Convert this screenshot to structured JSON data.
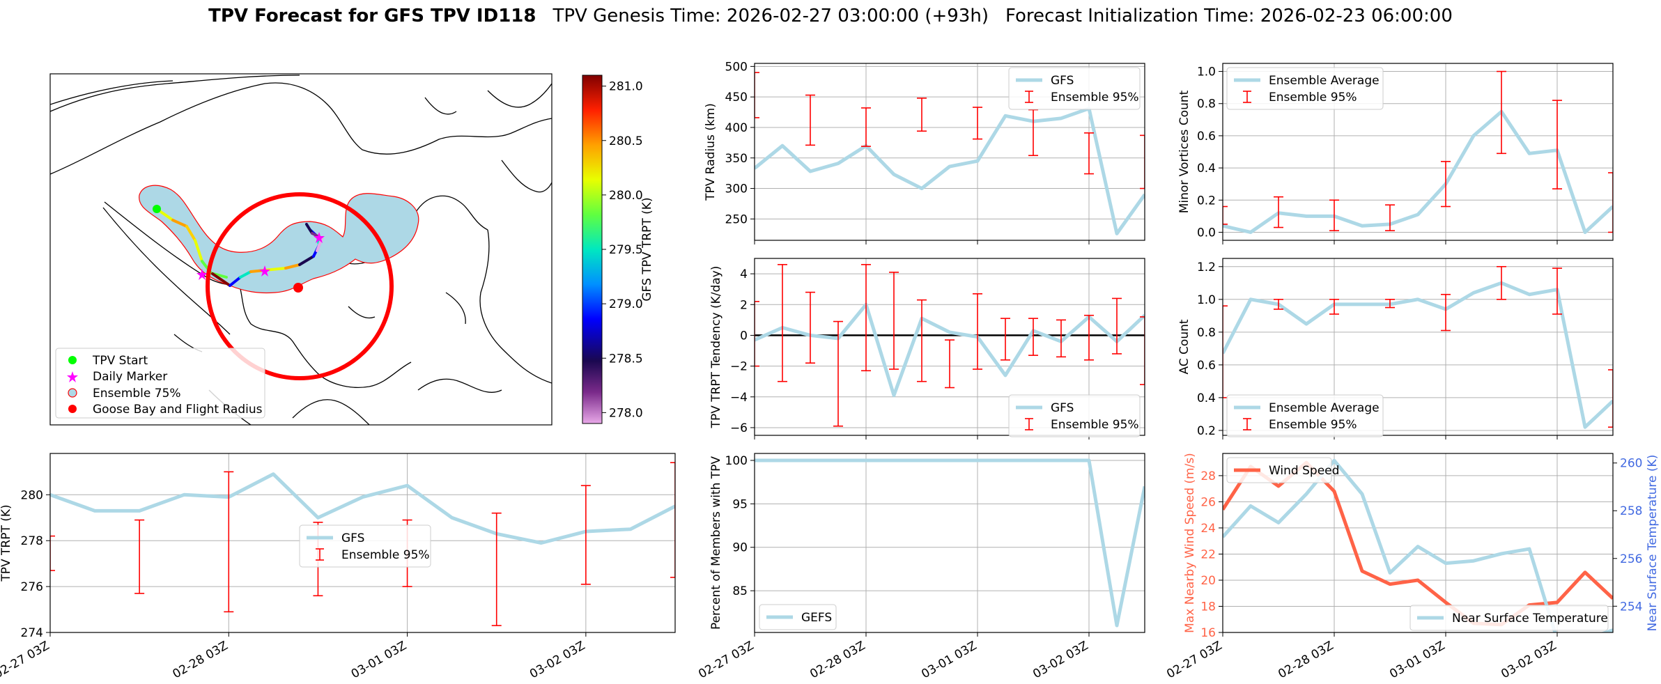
{
  "title": {
    "bold": "TPV Forecast for GFS TPV ID118",
    "genesis": "TPV Genesis Time: 2026-02-27 03:00:00 (+93h)",
    "init": "Forecast Initialization Time: 2026-02-23 06:00:00"
  },
  "colors": {
    "gfs": "#add8e6",
    "ens": "#ff0000",
    "wind": "#ff6347",
    "temp_axis": "#4169e1"
  },
  "map": {
    "legend": [
      "TPV Start",
      "Daily Marker",
      "Ensemble 75%",
      "Goose Bay and Flight Radius"
    ],
    "legend_colors": [
      "#00ff00",
      "#ff00ff",
      "#add8e6",
      "#ff0000"
    ],
    "colorbar": {
      "label": "GFS TPV TRPT (K)",
      "min": 277.9,
      "max": 281.1,
      "ticks": [
        "278.0",
        "278.5",
        "279.0",
        "279.5",
        "280.0",
        "280.5",
        "281.0"
      ]
    },
    "track_labels": [
      "TPV Start",
      "Daily Marker",
      "Goose Bay and Flight Radius"
    ]
  },
  "x_tick_labels": [
    "02-27 03Z",
    "02-28 03Z",
    "03-01 03Z",
    "03-02 03Z"
  ],
  "chart_data": [
    {
      "id": "radius",
      "type": "line",
      "ylabel": "TPV Radius (km)",
      "ylim": [
        215,
        505
      ],
      "yticks": [
        "250",
        "300",
        "350",
        "400",
        "450",
        "500"
      ],
      "ytick_values": [
        250,
        300,
        350,
        400,
        450,
        500
      ],
      "legend": [
        "GFS",
        "Ensemble 95%"
      ],
      "legend_position": "top-right",
      "series": [
        {
          "name": "GFS",
          "x": [
            0,
            3,
            6,
            9,
            12,
            15,
            18,
            21,
            24,
            27,
            30,
            33,
            36,
            39,
            42,
            45,
            48,
            51,
            52.5
          ],
          "values": [
            333,
            370,
            328,
            341,
            370,
            323,
            300,
            336,
            345,
            419,
            410,
            415,
            431,
            226,
            290,
            290,
            290,
            290,
            290
          ]
        }
      ],
      "error_bars": [
        {
          "x": [
            0,
            6,
            12,
            18,
            24,
            30,
            36,
            42
          ],
          "low": [
            416,
            371,
            369,
            394,
            381,
            354,
            324,
            300
          ],
          "high": [
            490,
            453,
            432,
            448,
            433,
            429,
            391,
            387
          ]
        }
      ]
    },
    {
      "id": "tendency",
      "type": "line",
      "ylabel": "TPV TRPT Tendency (K/day)",
      "ylim": [
        -6.5,
        5.0
      ],
      "yticks": [
        "−6",
        "−4",
        "−2",
        "0",
        "2",
        "4"
      ],
      "ytick_values": [
        -6,
        -4,
        -2,
        0,
        2,
        4
      ],
      "legend": [
        "GFS",
        "Ensemble 95%"
      ],
      "legend_position": "bottom-right",
      "series": [
        {
          "name": "GFS",
          "values": [
            -0.3,
            0.5,
            0.0,
            -0.2,
            2.0,
            -3.9,
            1.1,
            0.2,
            -0.1,
            -2.6,
            0.3,
            -0.4,
            1.2,
            -0.4,
            1.3
          ]
        }
      ],
      "error_bars": [
        {
          "x": [
            0,
            3,
            6,
            9,
            12,
            15,
            18,
            21,
            24,
            27,
            30,
            33,
            36,
            39,
            42
          ],
          "low": [
            -2.0,
            -3.0,
            -1.8,
            -5.9,
            -2.3,
            -2.2,
            -3.0,
            -3.4,
            -2.2,
            -1.6,
            -1.3,
            -1.4,
            -1.6,
            -1.2,
            -3.2
          ],
          "high": [
            2.2,
            4.6,
            2.8,
            0.9,
            4.6,
            4.1,
            2.3,
            -0.3,
            2.7,
            1.1,
            1.1,
            1.0,
            1.3,
            2.4,
            1.2
          ]
        }
      ]
    },
    {
      "id": "minor",
      "type": "line",
      "ylabel": "Minor Vortices Count",
      "ylim": [
        -0.05,
        1.05
      ],
      "yticks": [
        "0.0",
        "0.2",
        "0.4",
        "0.6",
        "0.8",
        "1.0"
      ],
      "ytick_values": [
        0,
        0.2,
        0.4,
        0.6,
        0.8,
        1.0
      ],
      "legend": [
        "Ensemble Average",
        "Ensemble 95%"
      ],
      "legend_position": "top-left",
      "series": [
        {
          "name": "Ensemble Average",
          "values": [
            0.04,
            0.0,
            0.12,
            0.1,
            0.1,
            0.04,
            0.05,
            0.11,
            0.3,
            0.6,
            0.75,
            0.49,
            0.51,
            0.0,
            0.16
          ]
        }
      ],
      "error_bars": [
        {
          "x": [
            0,
            6,
            12,
            18,
            24,
            30,
            36,
            42
          ],
          "low": [
            0.05,
            0.03,
            0.01,
            0.01,
            0.16,
            0.49,
            0.27,
            0.0
          ],
          "high": [
            0.16,
            0.22,
            0.2,
            0.17,
            0.44,
            1.0,
            0.82,
            0.37
          ]
        }
      ]
    },
    {
      "id": "ac",
      "type": "line",
      "ylabel": "AC Count",
      "ylim": [
        0.17,
        1.25
      ],
      "yticks": [
        "0.2",
        "0.4",
        "0.6",
        "0.8",
        "1.0",
        "1.2"
      ],
      "ytick_values": [
        0.2,
        0.4,
        0.6,
        0.8,
        1.0,
        1.2
      ],
      "legend": [
        "Ensemble Average",
        "Ensemble 95%"
      ],
      "legend_position": "bottom-left",
      "series": [
        {
          "name": "Ensemble Average",
          "values": [
            0.67,
            1.0,
            0.97,
            0.85,
            0.97,
            0.97,
            0.97,
            1.0,
            0.94,
            1.04,
            1.1,
            1.03,
            1.06,
            0.22,
            0.38
          ]
        }
      ],
      "error_bars": [
        {
          "x": [
            0,
            6,
            12,
            18,
            24,
            30,
            36,
            42
          ],
          "low": [
            0.4,
            0.94,
            0.91,
            0.95,
            0.81,
            1.0,
            0.91,
            0.22
          ],
          "high": [
            0.96,
            1.0,
            1.0,
            1.0,
            1.03,
            1.2,
            1.19,
            0.57
          ]
        }
      ]
    },
    {
      "id": "trpt",
      "type": "line",
      "ylabel": "TPV TRPT (K)",
      "ylim": [
        274,
        281.8
      ],
      "yticks": [
        "274",
        "276",
        "278",
        "280"
      ],
      "ytick_values": [
        274,
        276,
        278,
        280
      ],
      "legend": [
        "GFS",
        "Ensemble 95%"
      ],
      "legend_position": "center",
      "series": [
        {
          "name": "GFS",
          "values": [
            280.0,
            279.3,
            279.3,
            280.0,
            279.9,
            280.9,
            279.0,
            279.9,
            280.4,
            279.0,
            278.3,
            277.9,
            278.4,
            278.5,
            279.5
          ]
        }
      ],
      "error_bars": [
        {
          "x": [
            0,
            6,
            12,
            18,
            24,
            30,
            36,
            42
          ],
          "low": [
            276.7,
            275.7,
            274.9,
            275.6,
            276.0,
            274.3,
            276.1,
            276.4
          ],
          "high": [
            278.2,
            278.9,
            281.0,
            278.8,
            278.9,
            279.2,
            280.4,
            281.4
          ]
        }
      ]
    },
    {
      "id": "members",
      "type": "line",
      "ylabel": "Percent of Members with TPV",
      "ylim": [
        80.2,
        100.8
      ],
      "yticks": [
        "85",
        "90",
        "95",
        "100"
      ],
      "ytick_values": [
        85,
        90,
        95,
        100
      ],
      "legend": [
        "GEFS"
      ],
      "legend_position": "bottom-left",
      "series": [
        {
          "name": "GEFS",
          "values": [
            100,
            100,
            100,
            100,
            100,
            100,
            100,
            100,
            100,
            100,
            100,
            100,
            100,
            81,
            97
          ]
        }
      ]
    },
    {
      "id": "wind",
      "type": "line",
      "ylabel": "Max Nearby Wind Speed (m/s)",
      "ylabel2": "Near Surface Temperature (K)",
      "ylim": [
        16,
        29.7
      ],
      "y2lim": [
        252.9,
        260.4
      ],
      "yticks": [
        "16",
        "18",
        "20",
        "22",
        "24",
        "26",
        "28"
      ],
      "ytick_values": [
        16,
        18,
        20,
        22,
        24,
        26,
        28
      ],
      "y2ticks": [
        "254",
        "256",
        "258",
        "260"
      ],
      "y2tick_values": [
        254,
        256,
        258,
        260
      ],
      "legend": [
        "Wind Speed",
        "Near Surface Temperature"
      ],
      "series": [
        {
          "name": "Wind Speed",
          "axis": "left",
          "values": [
            25.4,
            28.7,
            27.2,
            29.0,
            26.8,
            20.7,
            19.7,
            20.0,
            18.3,
            16.7,
            16.6,
            18.1,
            18.3,
            20.6,
            18.6
          ]
        },
        {
          "name": "Near Surface Temperature",
          "axis": "right",
          "values": [
            256.9,
            258.2,
            257.5,
            258.7,
            260.1,
            258.7,
            255.4,
            256.5,
            255.8,
            255.9,
            256.2,
            256.4,
            252.6,
            252.6,
            253.0
          ]
        }
      ]
    }
  ]
}
